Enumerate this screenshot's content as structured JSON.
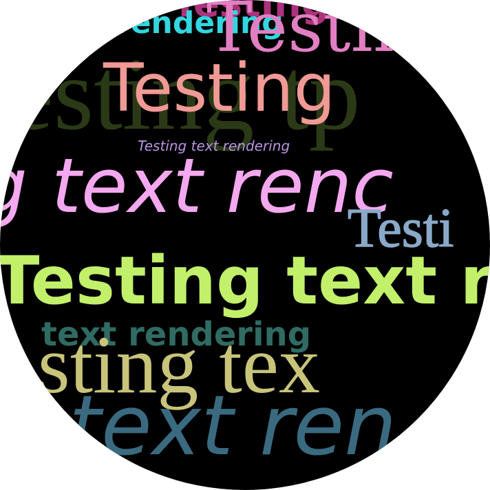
{
  "fragments": [
    {
      "id": "top-pink-ghost",
      "text": "Testing text",
      "color": "#d8409a"
    },
    {
      "id": "cyan-rendering",
      "text": "rendering",
      "color": "#33d6e0"
    },
    {
      "id": "pink-large-testin",
      "text": "Testin",
      "color": "#e27fc3"
    },
    {
      "id": "olive-testing-tp",
      "text": "Testing tp",
      "color": "#2b3a16"
    },
    {
      "id": "salmon-testing",
      "text": "Testing",
      "color": "#f19a95"
    },
    {
      "id": "lilac-small-script",
      "text": "Testing text rendering",
      "color": "#b894e0"
    },
    {
      "id": "pink-script-line",
      "text": "g text renc",
      "color": "#f4a8ef"
    },
    {
      "id": "outline-testi",
      "text": "Testi",
      "color": "#8aa8c8"
    },
    {
      "id": "lime-testing-text",
      "text": "Testing text re",
      "color": "#c2f06a"
    },
    {
      "id": "teal-text-rendering",
      "text": "text rendering",
      "color": "#2f6b63"
    },
    {
      "id": "khaki-sting",
      "text": "sting tex",
      "color": "#c8c47a"
    },
    {
      "id": "blue-script-text",
      "text": "text ren",
      "color": "#3a6a80"
    }
  ]
}
